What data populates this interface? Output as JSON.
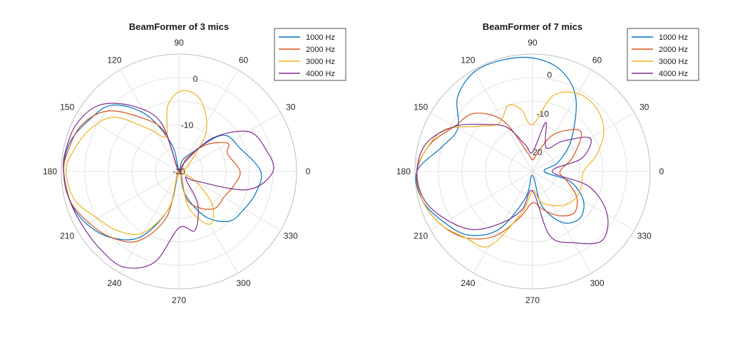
{
  "chart_data": [
    {
      "type": "polar-line",
      "title": "BeamFormer of 3 mics",
      "theta_ticks": [
        "0",
        "30",
        "60",
        "90",
        "120",
        "150",
        "180",
        "210",
        "240",
        "270",
        "300",
        "330"
      ],
      "r_ticks": [
        "-20",
        "-10",
        "0"
      ],
      "r_range_db": [
        -20,
        5
      ],
      "legend": {
        "placement": "top-right"
      },
      "series": [
        {
          "name": "1000 Hz",
          "color": "#0072BD",
          "points": [
            [
              0,
              -2.6
            ],
            [
              20,
              -6
            ],
            [
              40,
              -8
            ],
            [
              60,
              -16
            ],
            [
              75,
              -18
            ],
            [
              90,
              -20
            ],
            [
              105,
              -14
            ],
            [
              120,
              -6
            ],
            [
              135,
              0
            ],
            [
              150,
              2
            ],
            [
              165,
              4
            ],
            [
              180,
              4.5
            ],
            [
              195,
              4
            ],
            [
              210,
              2.5
            ],
            [
              225,
              0
            ],
            [
              240,
              -4
            ],
            [
              255,
              -12
            ],
            [
              270,
              -20
            ],
            [
              285,
              -15
            ],
            [
              300,
              -9
            ],
            [
              315,
              -5
            ],
            [
              330,
              -4
            ],
            [
              345,
              -3
            ]
          ]
        },
        {
          "name": "2000 Hz",
          "color": "#D95319",
          "points": [
            [
              0,
              -7
            ],
            [
              20,
              -9
            ],
            [
              30,
              -8
            ],
            [
              45,
              -12
            ],
            [
              60,
              -17
            ],
            [
              90,
              -20
            ],
            [
              110,
              -11
            ],
            [
              125,
              -6
            ],
            [
              140,
              0
            ],
            [
              155,
              3
            ],
            [
              170,
              4
            ],
            [
              180,
              4.5
            ],
            [
              195,
              4
            ],
            [
              210,
              2
            ],
            [
              225,
              0
            ],
            [
              240,
              -3
            ],
            [
              255,
              -10
            ],
            [
              270,
              -20
            ],
            [
              285,
              -14
            ],
            [
              300,
              -11
            ],
            [
              315,
              -9
            ],
            [
              330,
              -9
            ],
            [
              345,
              -8
            ]
          ]
        },
        {
          "name": "3000 Hz",
          "color": "#EDB120",
          "points": [
            [
              0,
              -20
            ],
            [
              30,
              -18
            ],
            [
              55,
              -10
            ],
            [
              70,
              -5
            ],
            [
              80,
              -3
            ],
            [
              90,
              -3
            ],
            [
              100,
              -6
            ],
            [
              110,
              -12
            ],
            [
              125,
              -9
            ],
            [
              140,
              -2
            ],
            [
              155,
              1
            ],
            [
              170,
              3
            ],
            [
              180,
              4
            ],
            [
              195,
              3
            ],
            [
              210,
              0
            ],
            [
              225,
              -2
            ],
            [
              240,
              -5
            ],
            [
              255,
              -12
            ],
            [
              270,
              -20
            ],
            [
              285,
              -12
            ],
            [
              300,
              -7
            ],
            [
              315,
              -10
            ],
            [
              330,
              -16
            ],
            [
              345,
              -20
            ]
          ]
        },
        {
          "name": "4000 Hz",
          "color": "#7E2F8E",
          "points": [
            [
              0,
              0
            ],
            [
              15,
              -1
            ],
            [
              30,
              -3
            ],
            [
              45,
              -10
            ],
            [
              60,
              -18
            ],
            [
              90,
              -20
            ],
            [
              110,
              -9
            ],
            [
              125,
              -3
            ],
            [
              140,
              2
            ],
            [
              155,
              4
            ],
            [
              170,
              4.5
            ],
            [
              180,
              4.5
            ],
            [
              195,
              4
            ],
            [
              210,
              3.5
            ],
            [
              225,
              3.5
            ],
            [
              240,
              3.5
            ],
            [
              255,
              0
            ],
            [
              270,
              -8
            ],
            [
              285,
              -7
            ],
            [
              300,
              -12
            ],
            [
              315,
              -18
            ],
            [
              330,
              -16
            ],
            [
              345,
              -5
            ]
          ]
        }
      ]
    },
    {
      "type": "polar-line",
      "title": "BeamFormer of 7 mics",
      "theta_ticks": [
        "0",
        "30",
        "60",
        "90",
        "120",
        "150",
        "180",
        "210",
        "240",
        "270",
        "300",
        "330"
      ],
      "r_ticks": [
        "-20",
        "-10",
        "0"
      ],
      "r_range_db": [
        -25,
        5
      ],
      "legend": {
        "placement": "top-right"
      },
      "series": [
        {
          "name": "1000 Hz",
          "color": "#0072BD",
          "points": [
            [
              0,
              -22
            ],
            [
              20,
              -18
            ],
            [
              40,
              -12
            ],
            [
              60,
              -3
            ],
            [
              75,
              2
            ],
            [
              90,
              4
            ],
            [
              105,
              4.5
            ],
            [
              120,
              4.5
            ],
            [
              135,
              2
            ],
            [
              150,
              -3
            ],
            [
              165,
              -1
            ],
            [
              180,
              4.5
            ],
            [
              195,
              4
            ],
            [
              210,
              1
            ],
            [
              225,
              -2
            ],
            [
              240,
              -8
            ],
            [
              255,
              -18
            ],
            [
              270,
              -24
            ],
            [
              285,
              -16
            ],
            [
              300,
              -10
            ],
            [
              315,
              -8
            ],
            [
              330,
              -10
            ],
            [
              345,
              -15
            ]
          ]
        },
        {
          "name": "2000 Hz",
          "color": "#D95319",
          "points": [
            [
              0,
              -18
            ],
            [
              20,
              -14
            ],
            [
              40,
              -9
            ],
            [
              60,
              -14
            ],
            [
              75,
              -20
            ],
            [
              90,
              -22
            ],
            [
              105,
              -20
            ],
            [
              120,
              -10
            ],
            [
              135,
              -4
            ],
            [
              150,
              -2
            ],
            [
              165,
              2
            ],
            [
              180,
              4.5
            ],
            [
              195,
              4
            ],
            [
              210,
              2
            ],
            [
              225,
              -1
            ],
            [
              240,
              -6
            ],
            [
              255,
              -13
            ],
            [
              270,
              -17
            ],
            [
              285,
              -15
            ],
            [
              300,
              -12
            ],
            [
              315,
              -10
            ],
            [
              330,
              -12
            ],
            [
              345,
              -16
            ]
          ]
        },
        {
          "name": "3000 Hz",
          "color": "#EDB120",
          "points": [
            [
              0,
              -12
            ],
            [
              15,
              -8
            ],
            [
              30,
              -4
            ],
            [
              45,
              -2
            ],
            [
              60,
              -2
            ],
            [
              75,
              -5
            ],
            [
              90,
              -13
            ],
            [
              100,
              -9
            ],
            [
              110,
              -7
            ],
            [
              125,
              -10
            ],
            [
              140,
              -7
            ],
            [
              155,
              0
            ],
            [
              170,
              3
            ],
            [
              180,
              4.5
            ],
            [
              195,
              4
            ],
            [
              210,
              2
            ],
            [
              225,
              -1
            ],
            [
              240,
              -3
            ],
            [
              255,
              -14
            ],
            [
              270,
              -20
            ],
            [
              285,
              -17
            ],
            [
              300,
              -15
            ],
            [
              315,
              -13
            ],
            [
              330,
              -12
            ],
            [
              345,
              -12
            ]
          ]
        },
        {
          "name": "4000 Hz",
          "color": "#7E2F8E",
          "points": [
            [
              0,
              -20
            ],
            [
              15,
              -12
            ],
            [
              30,
              -8
            ],
            [
              45,
              -14
            ],
            [
              60,
              -18
            ],
            [
              75,
              -12
            ],
            [
              90,
              -20
            ],
            [
              105,
              -18
            ],
            [
              120,
              -12
            ],
            [
              135,
              -8
            ],
            [
              150,
              -2
            ],
            [
              165,
              3
            ],
            [
              180,
              4.5
            ],
            [
              195,
              3.5
            ],
            [
              210,
              0
            ],
            [
              225,
              -4
            ],
            [
              240,
              -10
            ],
            [
              255,
              -15
            ],
            [
              270,
              -20
            ],
            [
              285,
              -8
            ],
            [
              300,
              -4
            ],
            [
              315,
              0
            ],
            [
              330,
              -3
            ],
            [
              345,
              -10
            ]
          ]
        }
      ]
    }
  ]
}
